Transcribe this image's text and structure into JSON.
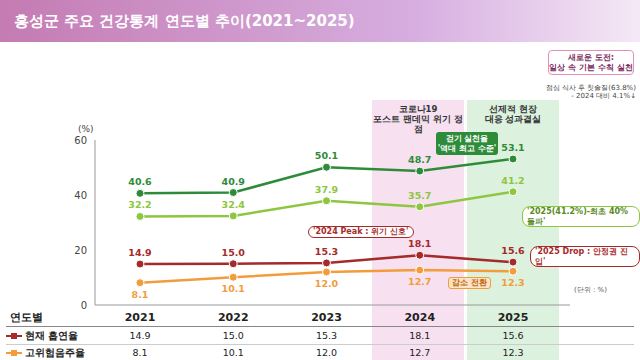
{
  "chart_data": {
    "type": "line",
    "title": "홍성군 주요 건강통계 연도별 추이(2021~2025)",
    "y_label": "(%)",
    "table_header": "연도별",
    "categories": [
      "2021",
      "2022",
      "2023",
      "2024",
      "2025"
    ],
    "series": [
      {
        "color": "#2e8b3a",
        "values": [
          40.6,
          40.9,
          50.1,
          48.7,
          53.1
        ]
      },
      {
        "color": "#8dc63f",
        "values": [
          32.2,
          32.4,
          37.9,
          35.7,
          41.2
        ]
      },
      {
        "name": "현재 흡연율",
        "color": "#a52a2a",
        "values": [
          14.9,
          15.0,
          15.3,
          18.1,
          15.6
        ],
        "value_labels": [
          "14.9",
          "15.0",
          "15.3",
          "18.1",
          "15.6"
        ]
      },
      {
        "name": "고위험음주율",
        "color": "#f39c3c",
        "values": [
          8.1,
          10.1,
          12.0,
          12.7,
          12.3
        ],
        "value_labels": [
          "8.1",
          "10.1",
          "12.0",
          "12.7",
          "12.3"
        ]
      }
    ],
    "ylim": [
      0,
      60
    ],
    "yticks": [
      0,
      20,
      40,
      60
    ],
    "grid": false,
    "marker": "circle",
    "data_labels": true,
    "annotations": [
      {
        "text": "코로나19\n포스트 팬데믹 위기 정점"
      },
      {
        "text": "선제적 현장\n대응 성과결실"
      },
      {
        "text": "새로운 도전:\n일상 속 기본 수칙 실천"
      },
      {
        "text": "점심 식사 후 칫솔질(63.8%)\n- 2024 대비 4.1%↓"
      },
      {
        "text": "걷기 실천율\n'역대 최고 수준'"
      },
      {
        "text": "'2024 Peak : 위기 신호'"
      },
      {
        "text": "'2025 Drop : 안정권 진입'"
      },
      {
        "text": "'2025(41.2%)-최초 40% 돌파'"
      },
      {
        "text": "감소 전환"
      },
      {
        "text": "(단위 : %)"
      }
    ]
  }
}
